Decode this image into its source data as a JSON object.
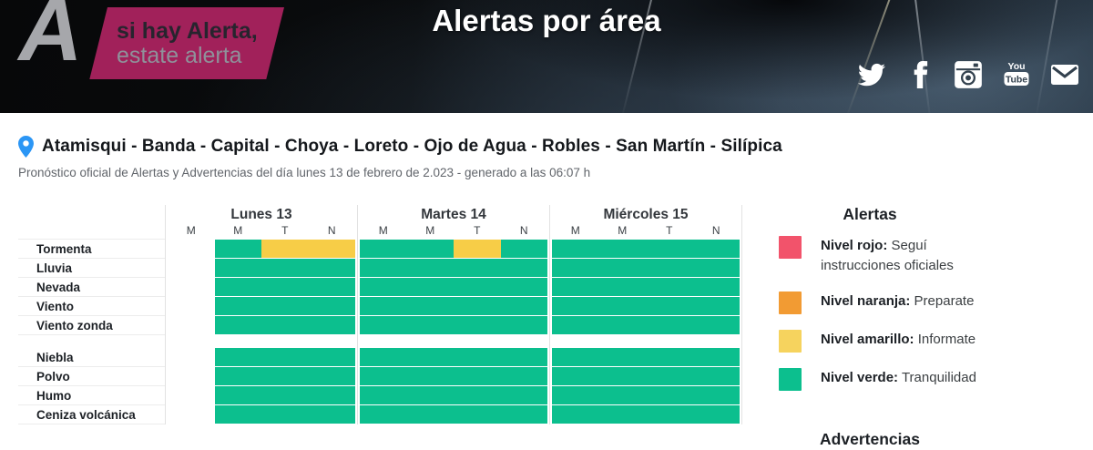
{
  "header": {
    "title": "Alertas por área",
    "logo": {
      "letter": "A",
      "line1": "si hay Alerta,",
      "line2": "estate alerta"
    },
    "social": [
      "twitter",
      "facebook",
      "instagram",
      "youtube",
      "email"
    ]
  },
  "location": {
    "areas": "Atamisqui - Banda - Capital - Choya - Loreto - Ojo de Agua - Robles - San Martín - Silípica",
    "subtitle": "Pronóstico oficial de Alertas y Advertencias del día lunes 13 de febrero de 2.023 - generado a las 06:07 h"
  },
  "forecast_table": {
    "days": [
      {
        "label": "Lunes 13"
      },
      {
        "label": "Martes 14"
      },
      {
        "label": "Miércoles 15"
      }
    ],
    "time_slots": [
      "M",
      "M",
      "T",
      "N"
    ],
    "hazard_groups": [
      {
        "rows": [
          {
            "label": "Tormenta",
            "levels": [
              [
                "blank",
                "green",
                "yellow",
                "yellow"
              ],
              [
                "green",
                "green",
                "yellow",
                "green"
              ],
              [
                "green",
                "green",
                "green",
                "green"
              ]
            ]
          },
          {
            "label": "Lluvia",
            "levels": [
              [
                "blank",
                "green",
                "green",
                "green"
              ],
              [
                "green",
                "green",
                "green",
                "green"
              ],
              [
                "green",
                "green",
                "green",
                "green"
              ]
            ]
          },
          {
            "label": "Nevada",
            "levels": [
              [
                "blank",
                "green",
                "green",
                "green"
              ],
              [
                "green",
                "green",
                "green",
                "green"
              ],
              [
                "green",
                "green",
                "green",
                "green"
              ]
            ]
          },
          {
            "label": "Viento",
            "levels": [
              [
                "blank",
                "green",
                "green",
                "green"
              ],
              [
                "green",
                "green",
                "green",
                "green"
              ],
              [
                "green",
                "green",
                "green",
                "green"
              ]
            ]
          },
          {
            "label": "Viento zonda",
            "levels": [
              [
                "blank",
                "green",
                "green",
                "green"
              ],
              [
                "green",
                "green",
                "green",
                "green"
              ],
              [
                "green",
                "green",
                "green",
                "green"
              ]
            ]
          }
        ]
      },
      {
        "rows": [
          {
            "label": "Niebla",
            "levels": [
              [
                "blank",
                "green",
                "green",
                "green"
              ],
              [
                "green",
                "green",
                "green",
                "green"
              ],
              [
                "green",
                "green",
                "green",
                "green"
              ]
            ]
          },
          {
            "label": "Polvo",
            "levels": [
              [
                "blank",
                "green",
                "green",
                "green"
              ],
              [
                "green",
                "green",
                "green",
                "green"
              ],
              [
                "green",
                "green",
                "green",
                "green"
              ]
            ]
          },
          {
            "label": "Humo",
            "levels": [
              [
                "blank",
                "green",
                "green",
                "green"
              ],
              [
                "green",
                "green",
                "green",
                "green"
              ],
              [
                "green",
                "green",
                "green",
                "green"
              ]
            ]
          },
          {
            "label": "Ceniza volcánica",
            "levels": [
              [
                "blank",
                "green",
                "green",
                "green"
              ],
              [
                "green",
                "green",
                "green",
                "green"
              ],
              [
                "green",
                "green",
                "green",
                "green"
              ]
            ]
          }
        ]
      }
    ]
  },
  "legend": {
    "alerts_title": "Alertas",
    "items": [
      {
        "key": "rojo",
        "color": "#f2536b",
        "label": "Nivel rojo:",
        "text": "Seguí instrucciones oficiales"
      },
      {
        "key": "naranja",
        "color": "#f29b33",
        "label": "Nivel naranja:",
        "text": "Preparate"
      },
      {
        "key": "amarillo",
        "color": "#f6d35e",
        "label": "Nivel amarillo:",
        "text": "Informate"
      },
      {
        "key": "verde",
        "color": "#0cbf8e",
        "label": "Nivel verde:",
        "text": "Tranquilidad"
      }
    ],
    "advertencias_title": "Advertencias"
  },
  "colors": {
    "green": "#0cbf8e",
    "yellow": "#f7cd47",
    "blank": "transparent",
    "logo_box": "#a1215a",
    "pin_blue": "#2b96f5"
  }
}
